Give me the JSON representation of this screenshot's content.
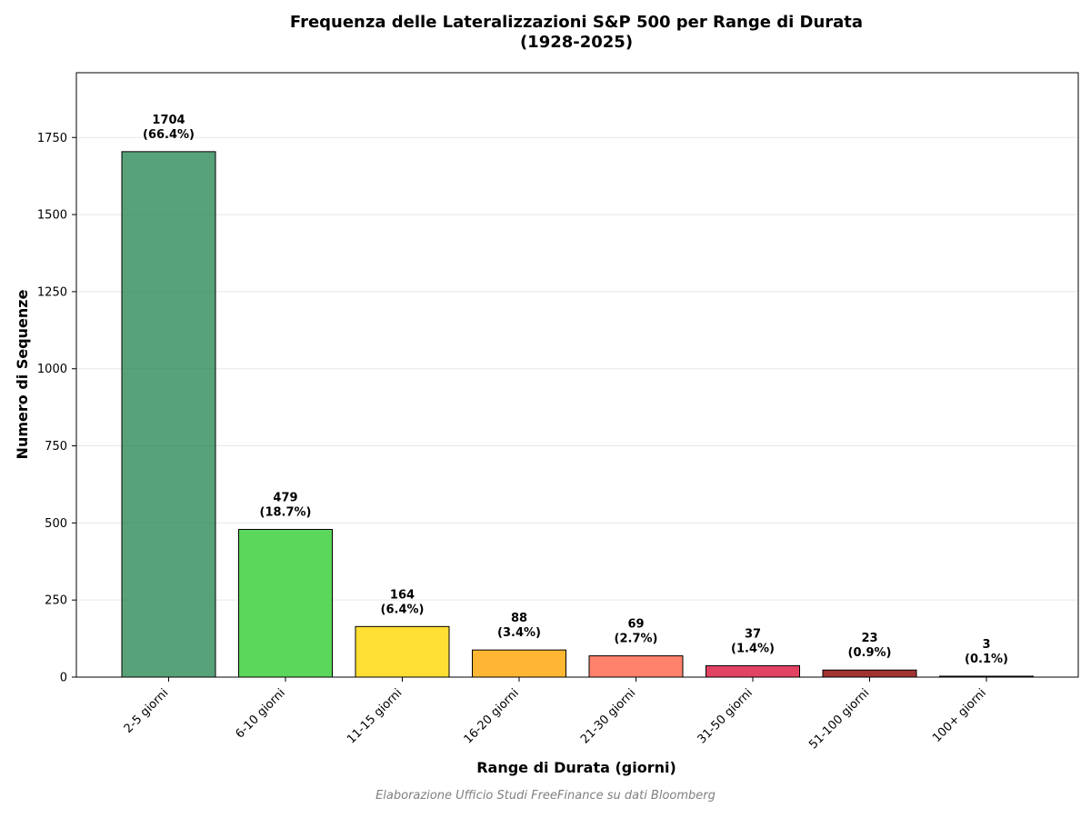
{
  "chart_data": {
    "type": "bar",
    "title_line1": "Frequenza delle Lateralizzazioni S&P 500 per Range di Durata",
    "title_line2": "(1928-2025)",
    "xlabel": "Range di Durata (giorni)",
    "ylabel": "Numero di Sequenze",
    "caption": "Elaborazione Ufficio Studi FreeFinance su dati Bloomberg",
    "categories": [
      "2-5 giorni",
      "6-10 giorni",
      "11-15 giorni",
      "16-20 giorni",
      "21-30 giorni",
      "31-50 giorni",
      "51-100 giorni",
      "100+ giorni"
    ],
    "values": [
      1704,
      479,
      164,
      88,
      69,
      37,
      23,
      3
    ],
    "percent_labels": [
      "(66.4%)",
      "(18.7%)",
      "(6.4%)",
      "(3.4%)",
      "(2.7%)",
      "(1.4%)",
      "(0.9%)",
      "(0.1%)"
    ],
    "colors": [
      "#2E8B57",
      "#32CD32",
      "#FFD700",
      "#FFA500",
      "#FF6347",
      "#DC143C",
      "#8B0000",
      "#4B0000"
    ],
    "ylim": [
      0,
      1960
    ],
    "yticks": [
      0,
      250,
      500,
      750,
      1000,
      1250,
      1500,
      1750
    ],
    "grid": true,
    "legend": "none"
  }
}
